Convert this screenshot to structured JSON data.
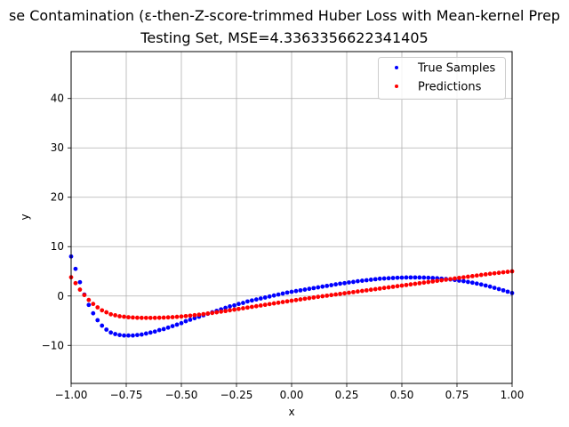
{
  "chart_data": {
    "type": "scatter",
    "title_line1": "se Contamination (ε-then-Z-score-trimmed Huber Loss with Mean-kernel Prep",
    "title_line2": "Testing Set, MSE=4.3363356622341405",
    "xlabel": "x",
    "ylabel": "y",
    "xlim": [
      -1.0,
      1.0
    ],
    "ylim": [
      -17.7,
      49.5
    ],
    "xticks": [
      {
        "value": -1.0,
        "label": "−1.00"
      },
      {
        "value": -0.75,
        "label": "−0.75"
      },
      {
        "value": -0.5,
        "label": "−0.50"
      },
      {
        "value": -0.25,
        "label": "−0.25"
      },
      {
        "value": 0.0,
        "label": "0.00"
      },
      {
        "value": 0.25,
        "label": "0.25"
      },
      {
        "value": 0.5,
        "label": "0.50"
      },
      {
        "value": 0.75,
        "label": "0.75"
      },
      {
        "value": 1.0,
        "label": "1.00"
      }
    ],
    "yticks": [
      {
        "value": -10,
        "label": "−10"
      },
      {
        "value": 0,
        "label": "0"
      },
      {
        "value": 10,
        "label": "10"
      },
      {
        "value": 20,
        "label": "20"
      },
      {
        "value": 30,
        "label": "30"
      },
      {
        "value": 40,
        "label": "40"
      }
    ],
    "grid": true,
    "legend_position": "top-right",
    "series": [
      {
        "name": "True Samples",
        "color": "#0000ff",
        "points": [
          [
            -1.0,
            8.0
          ],
          [
            -0.98,
            5.5
          ],
          [
            -0.96,
            2.8
          ],
          [
            -0.94,
            0.3
          ],
          [
            -0.92,
            -1.8
          ],
          [
            -0.9,
            -3.5
          ],
          [
            -0.88,
            -4.9
          ],
          [
            -0.86,
            -6.0
          ],
          [
            -0.84,
            -6.8
          ],
          [
            -0.82,
            -7.4
          ],
          [
            -0.8,
            -7.7
          ],
          [
            -0.78,
            -7.9
          ],
          [
            -0.76,
            -8.0
          ],
          [
            -0.74,
            -8.0
          ],
          [
            -0.72,
            -8.0
          ],
          [
            -0.7,
            -7.9
          ],
          [
            -0.68,
            -7.8
          ],
          [
            -0.66,
            -7.6
          ],
          [
            -0.64,
            -7.4
          ],
          [
            -0.62,
            -7.2
          ],
          [
            -0.6,
            -6.9
          ],
          [
            -0.58,
            -6.7
          ],
          [
            -0.56,
            -6.4
          ],
          [
            -0.54,
            -6.1
          ],
          [
            -0.52,
            -5.8
          ],
          [
            -0.5,
            -5.5
          ],
          [
            -0.48,
            -5.1
          ],
          [
            -0.46,
            -4.8
          ],
          [
            -0.44,
            -4.5
          ],
          [
            -0.42,
            -4.2
          ],
          [
            -0.4,
            -3.9
          ],
          [
            -0.38,
            -3.6
          ],
          [
            -0.36,
            -3.3
          ],
          [
            -0.34,
            -3.0
          ],
          [
            -0.32,
            -2.7
          ],
          [
            -0.3,
            -2.4
          ],
          [
            -0.28,
            -2.1
          ],
          [
            -0.26,
            -1.9
          ],
          [
            -0.24,
            -1.6
          ],
          [
            -0.22,
            -1.4
          ],
          [
            -0.2,
            -1.1
          ],
          [
            -0.18,
            -0.9
          ],
          [
            -0.16,
            -0.7
          ],
          [
            -0.14,
            -0.5
          ],
          [
            -0.12,
            -0.3
          ],
          [
            -0.1,
            -0.1
          ],
          [
            -0.08,
            0.1
          ],
          [
            -0.06,
            0.3
          ],
          [
            -0.04,
            0.5
          ],
          [
            -0.02,
            0.7
          ],
          [
            0.0,
            0.85
          ],
          [
            0.02,
            1.0
          ],
          [
            0.04,
            1.15
          ],
          [
            0.06,
            1.3
          ],
          [
            0.08,
            1.45
          ],
          [
            0.1,
            1.6
          ],
          [
            0.12,
            1.75
          ],
          [
            0.14,
            1.9
          ],
          [
            0.16,
            2.05
          ],
          [
            0.18,
            2.2
          ],
          [
            0.2,
            2.35
          ],
          [
            0.22,
            2.5
          ],
          [
            0.24,
            2.6
          ],
          [
            0.26,
            2.75
          ],
          [
            0.28,
            2.85
          ],
          [
            0.3,
            3.0
          ],
          [
            0.32,
            3.1
          ],
          [
            0.34,
            3.2
          ],
          [
            0.36,
            3.3
          ],
          [
            0.38,
            3.4
          ],
          [
            0.4,
            3.5
          ],
          [
            0.42,
            3.55
          ],
          [
            0.44,
            3.6
          ],
          [
            0.46,
            3.65
          ],
          [
            0.48,
            3.7
          ],
          [
            0.5,
            3.72
          ],
          [
            0.52,
            3.75
          ],
          [
            0.54,
            3.76
          ],
          [
            0.56,
            3.76
          ],
          [
            0.58,
            3.75
          ],
          [
            0.6,
            3.73
          ],
          [
            0.62,
            3.7
          ],
          [
            0.64,
            3.65
          ],
          [
            0.66,
            3.6
          ],
          [
            0.68,
            3.52
          ],
          [
            0.7,
            3.45
          ],
          [
            0.72,
            3.35
          ],
          [
            0.74,
            3.25
          ],
          [
            0.76,
            3.12
          ],
          [
            0.78,
            3.0
          ],
          [
            0.8,
            2.85
          ],
          [
            0.82,
            2.7
          ],
          [
            0.84,
            2.52
          ],
          [
            0.86,
            2.33
          ],
          [
            0.88,
            2.12
          ],
          [
            0.9,
            1.9
          ],
          [
            0.92,
            1.65
          ],
          [
            0.94,
            1.4
          ],
          [
            0.96,
            1.15
          ],
          [
            0.98,
            0.88
          ],
          [
            1.0,
            0.6
          ]
        ]
      },
      {
        "name": "Predictions",
        "color": "#ff0000",
        "points": [
          [
            -1.0,
            3.8
          ],
          [
            -0.98,
            2.6
          ],
          [
            -0.96,
            1.3
          ],
          [
            -0.94,
            0.2
          ],
          [
            -0.92,
            -0.8
          ],
          [
            -0.9,
            -1.6
          ],
          [
            -0.88,
            -2.3
          ],
          [
            -0.86,
            -2.9
          ],
          [
            -0.84,
            -3.3
          ],
          [
            -0.82,
            -3.7
          ],
          [
            -0.8,
            -3.9
          ],
          [
            -0.78,
            -4.1
          ],
          [
            -0.76,
            -4.2
          ],
          [
            -0.74,
            -4.3
          ],
          [
            -0.72,
            -4.35
          ],
          [
            -0.7,
            -4.4
          ],
          [
            -0.68,
            -4.42
          ],
          [
            -0.66,
            -4.43
          ],
          [
            -0.64,
            -4.43
          ],
          [
            -0.62,
            -4.42
          ],
          [
            -0.6,
            -4.4
          ],
          [
            -0.58,
            -4.37
          ],
          [
            -0.56,
            -4.33
          ],
          [
            -0.54,
            -4.28
          ],
          [
            -0.52,
            -4.22
          ],
          [
            -0.5,
            -4.15
          ],
          [
            -0.48,
            -4.07
          ],
          [
            -0.46,
            -3.98
          ],
          [
            -0.44,
            -3.88
          ],
          [
            -0.42,
            -3.78
          ],
          [
            -0.4,
            -3.67
          ],
          [
            -0.38,
            -3.55
          ],
          [
            -0.36,
            -3.43
          ],
          [
            -0.34,
            -3.3
          ],
          [
            -0.32,
            -3.17
          ],
          [
            -0.3,
            -3.04
          ],
          [
            -0.28,
            -2.9
          ],
          [
            -0.26,
            -2.76
          ],
          [
            -0.24,
            -2.62
          ],
          [
            -0.22,
            -2.48
          ],
          [
            -0.2,
            -2.34
          ],
          [
            -0.18,
            -2.2
          ],
          [
            -0.16,
            -2.06
          ],
          [
            -0.14,
            -1.92
          ],
          [
            -0.12,
            -1.78
          ],
          [
            -0.1,
            -1.64
          ],
          [
            -0.08,
            -1.5
          ],
          [
            -0.06,
            -1.36
          ],
          [
            -0.04,
            -1.22
          ],
          [
            -0.02,
            -1.08
          ],
          [
            0.0,
            -0.95
          ],
          [
            0.02,
            -0.82
          ],
          [
            0.04,
            -0.69
          ],
          [
            0.06,
            -0.56
          ],
          [
            0.08,
            -0.43
          ],
          [
            0.1,
            -0.3
          ],
          [
            0.12,
            -0.17
          ],
          [
            0.14,
            -0.05
          ],
          [
            0.16,
            0.07
          ],
          [
            0.18,
            0.19
          ],
          [
            0.2,
            0.31
          ],
          [
            0.22,
            0.43
          ],
          [
            0.24,
            0.55
          ],
          [
            0.26,
            0.67
          ],
          [
            0.28,
            0.79
          ],
          [
            0.3,
            0.91
          ],
          [
            0.32,
            1.03
          ],
          [
            0.34,
            1.15
          ],
          [
            0.36,
            1.27
          ],
          [
            0.38,
            1.39
          ],
          [
            0.4,
            1.51
          ],
          [
            0.42,
            1.63
          ],
          [
            0.44,
            1.75
          ],
          [
            0.46,
            1.87
          ],
          [
            0.48,
            1.99
          ],
          [
            0.5,
            2.11
          ],
          [
            0.52,
            2.23
          ],
          [
            0.54,
            2.35
          ],
          [
            0.56,
            2.47
          ],
          [
            0.58,
            2.59
          ],
          [
            0.6,
            2.71
          ],
          [
            0.62,
            2.83
          ],
          [
            0.64,
            2.95
          ],
          [
            0.66,
            3.07
          ],
          [
            0.68,
            3.19
          ],
          [
            0.7,
            3.31
          ],
          [
            0.72,
            3.43
          ],
          [
            0.74,
            3.55
          ],
          [
            0.76,
            3.67
          ],
          [
            0.78,
            3.79
          ],
          [
            0.8,
            3.91
          ],
          [
            0.82,
            4.03
          ],
          [
            0.84,
            4.15
          ],
          [
            0.86,
            4.27
          ],
          [
            0.88,
            4.39
          ],
          [
            0.9,
            4.5
          ],
          [
            0.92,
            4.6
          ],
          [
            0.94,
            4.7
          ],
          [
            0.96,
            4.8
          ],
          [
            0.98,
            4.9
          ],
          [
            1.0,
            5.0
          ]
        ]
      }
    ]
  }
}
